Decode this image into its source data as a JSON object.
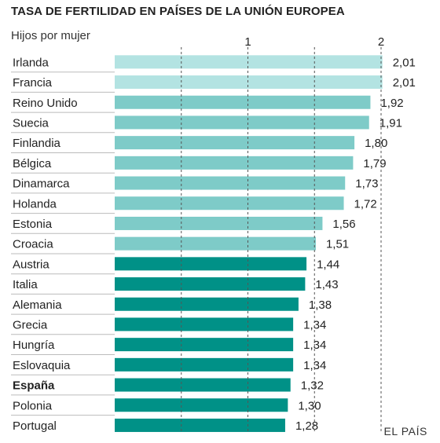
{
  "header": {
    "title": "TASA DE FERTILIDAD EN PAÍSES DE LA UNIÓN EUROPEA",
    "subtitle": "Hijos por mujer"
  },
  "footer": {
    "source": "EL PAÍS"
  },
  "chart_data": {
    "type": "bar",
    "orientation": "horizontal",
    "title": "TASA DE FERTILIDAD EN PAÍSES DE LA UNIÓN EUROPEA",
    "subtitle": "Hijos por mujer",
    "xlim": [
      0,
      2
    ],
    "ticks": [
      0.5,
      1,
      1.5,
      2
    ],
    "tick_labels": [
      "",
      "1",
      "",
      "2"
    ],
    "grid": true,
    "categories": [
      "Irlanda",
      "Francia",
      "Reino Unido",
      "Suecia",
      "Finlandia",
      "Bélgica",
      "Dinamarca",
      "Holanda",
      "Estonia",
      "Croacia",
      "Austria",
      "Italia",
      "Alemania",
      "Grecia",
      "Hungría",
      "Eslovaquia",
      "España",
      "Polonia",
      "Portugal"
    ],
    "values": [
      2.01,
      2.01,
      1.92,
      1.91,
      1.8,
      1.79,
      1.73,
      1.72,
      1.56,
      1.51,
      1.44,
      1.43,
      1.38,
      1.34,
      1.34,
      1.34,
      1.32,
      1.3,
      1.28
    ],
    "value_labels": [
      "2,01",
      "2,01",
      "1,92",
      "1,91",
      "1,80",
      "1,79",
      "1,73",
      "1,72",
      "1,56",
      "1,51",
      "1,44",
      "1,43",
      "1,38",
      "1,34",
      "1,34",
      "1,34",
      "1,32",
      "1,30",
      "1,28"
    ],
    "highlighted": [
      "España"
    ],
    "colors": {
      "above_2": "#b3e3e2",
      "from_1_5": "#7ecbc8",
      "below_1_5": "#009187",
      "grid": "#555555",
      "separator": "#bbbbbb"
    }
  }
}
